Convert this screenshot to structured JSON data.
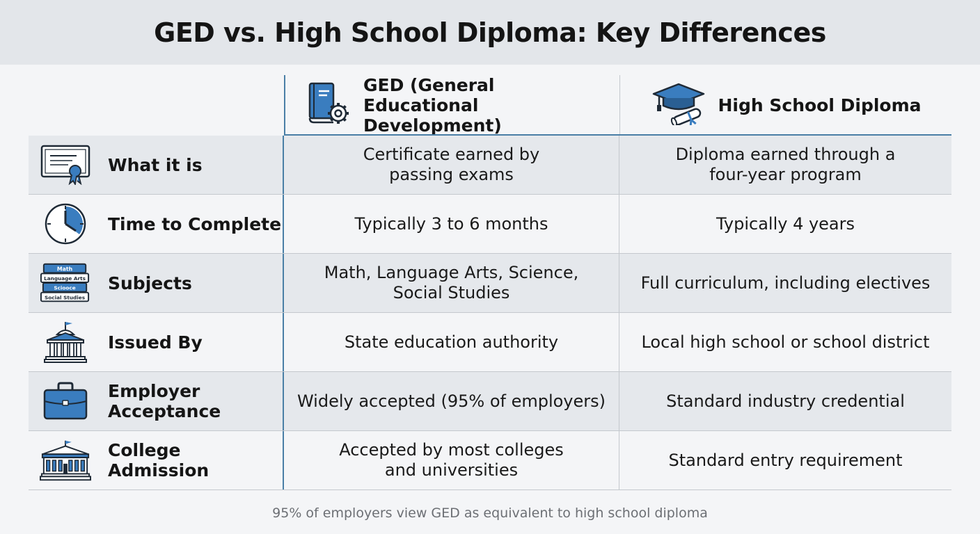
{
  "title": "GED vs. High School Diploma: Key Differences",
  "columns": {
    "ged": {
      "label": "GED (General Educational Development)",
      "icon": "book-gear-icon"
    },
    "hs": {
      "label": "High School Diploma",
      "icon": "graduation-cap-icon"
    }
  },
  "rows": [
    {
      "label": "What it is",
      "icon": "certificate-icon",
      "ged": "Certificate earned by passing exams",
      "hs": "Diploma earned through a four-year program"
    },
    {
      "label": "Time to Complete",
      "icon": "clock-icon",
      "ged": "Typically 3 to 6 months",
      "hs": "Typically 4 years"
    },
    {
      "label": "Subjects",
      "icon": "books-icon",
      "ged": "Math, Language Arts, Science, Social Studies",
      "hs": "Full curriculum, including electives",
      "book_titles": [
        "Math",
        "Language Arts",
        "Sciooce",
        "Social Studies"
      ]
    },
    {
      "label": "Issued By",
      "icon": "government-building-icon",
      "ged": "State education authority",
      "hs": "Local high school or school district"
    },
    {
      "label": "Employer Acceptance",
      "icon": "briefcase-icon",
      "ged": "Widely accepted (95% of employers)",
      "hs": "Standard industry credential"
    },
    {
      "label": "College Admission",
      "icon": "university-icon",
      "ged": "Accepted by most colleges and universities",
      "hs": "Standard entry requirement"
    }
  ],
  "footnote": "95% of employers view GED as equivalent to high school diploma",
  "colors": {
    "accent": "#3a7dbf",
    "divider": "#4a7fa6",
    "shaded_row": "#e5e8ec"
  }
}
